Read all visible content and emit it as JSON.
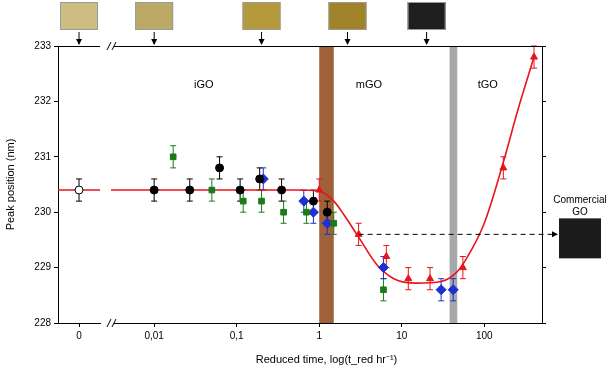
{
  "chart_data": [
    {
      "type": "scatter",
      "ylabel": "Peak position (nm)",
      "xlim": [
        -1,
        1
      ],
      "xticks": [
        0
      ],
      "ylim": [
        228,
        233
      ],
      "yticks": [
        228,
        229,
        230,
        231,
        232,
        233
      ],
      "grid": false,
      "series": [
        {
          "color": "#ffffff",
          "marker": "circle",
          "x": [
            0
          ],
          "values": [
            230.4
          ],
          "errors": [
            0.2
          ]
        },
        {
          "type": "line",
          "color": "#e8141b",
          "line_style": "solid",
          "x": [
            -1,
            1
          ],
          "values": [
            230.4,
            230.4
          ]
        }
      ],
      "samples": [
        {
          "x": 0,
          "color": "#cdbd82"
        }
      ]
    },
    {
      "type": "scatter",
      "xlabel": "Reduced time, log(t_red hr⁻¹)",
      "log": "x",
      "xlim": [
        0.003,
        500
      ],
      "xticks": [
        {
          "value": 0.01,
          "label": "0,01"
        },
        {
          "value": 0.1,
          "label": "0,1"
        },
        1,
        10,
        100
      ],
      "ylim": [
        228,
        233
      ],
      "yticks": [
        228,
        229,
        230,
        231,
        232,
        233
      ],
      "grid": false,
      "tick_labels": "x",
      "series": [
        {
          "type": "line",
          "color": "#e8141b",
          "line_style": "solid",
          "x": [
            0.003,
            0.5,
            1,
            1.5,
            2,
            3,
            5,
            8,
            15,
            30,
            45,
            60,
            100,
            170,
            250,
            400
          ],
          "values": [
            230.4,
            230.4,
            230.38,
            230.2,
            229.95,
            229.55,
            229.05,
            228.8,
            228.72,
            228.75,
            228.9,
            229.15,
            229.8,
            230.9,
            231.8,
            232.8
          ]
        },
        {
          "color": "#000000",
          "marker": "circle",
          "x": [
            0.01,
            0.027,
            0.062,
            0.11,
            0.19,
            0.35,
            0.85,
            1.25
          ],
          "values": [
            230.4,
            230.4,
            230.8,
            230.4,
            230.6,
            230.4,
            230.2,
            230.0
          ],
          "errors": [
            0.2,
            0.2,
            0.2,
            0.2,
            0.2,
            0.2,
            0.2,
            0.2
          ]
        },
        {
          "color": "#1a7a1a",
          "marker": "square",
          "x": [
            0.017,
            0.05,
            0.12,
            0.2,
            0.37,
            0.7,
            1.5,
            6
          ],
          "values": [
            231.0,
            230.4,
            230.2,
            230.2,
            230.0,
            230.0,
            229.8,
            228.6
          ],
          "errors": [
            0.2,
            0.2,
            0.2,
            0.2,
            0.2,
            0.2,
            0.2,
            0.2
          ]
        },
        {
          "color": "#1f2fd0",
          "marker": "diamond",
          "x": [
            0.21,
            0.65,
            0.85,
            1.25,
            6,
            30,
            42
          ],
          "values": [
            230.6,
            230.2,
            230.0,
            229.8,
            229.0,
            228.6,
            228.6
          ],
          "errors": [
            0.2,
            0.2,
            0.2,
            0.2,
            0.2,
            0.2,
            0.2
          ]
        },
        {
          "color": "#e8141b",
          "marker": "triangle",
          "x": [
            1.0,
            3.0,
            6.5,
            12,
            22,
            55,
            170,
            400
          ],
          "values": [
            230.4,
            229.6,
            229.2,
            228.8,
            228.8,
            229.0,
            230.8,
            232.8
          ],
          "errors": [
            0.2,
            0.2,
            0.2,
            0.2,
            0.2,
            0.2,
            0.2,
            0.2
          ]
        }
      ],
      "bands": [
        {
          "from": 1,
          "to": 1.5,
          "color": "#a0603a"
        },
        {
          "from": 38,
          "to": 47,
          "color": "#a8a8a8"
        }
      ],
      "annotations": [
        {
          "text": "iGO",
          "x": 0.04,
          "y": 232.3
        },
        {
          "text": "mGO",
          "x": 4,
          "y": 232.3
        },
        {
          "text": "tGO",
          "x": 110,
          "y": 232.3
        }
      ],
      "reference_line": {
        "value": 229.6,
        "from": 3,
        "label": "Commercial GO",
        "color": "#1c1c1c"
      },
      "samples": [
        {
          "x": 0.01,
          "color": "#bda966"
        },
        {
          "x": 0.2,
          "color": "#b49a3c"
        },
        {
          "x": 2.2,
          "color": "#a0822a"
        },
        {
          "x": 20,
          "color": "#1e1e1e"
        }
      ]
    }
  ]
}
